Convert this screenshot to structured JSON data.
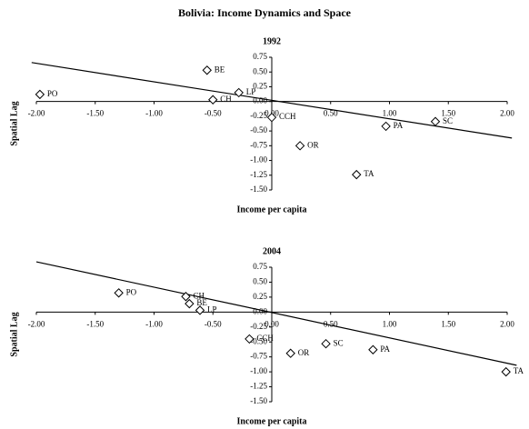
{
  "title": "Bolivia: Income Dynamics and Space",
  "chart_data": [
    {
      "type": "scatter",
      "title": "1992",
      "x_label": "Income per capita",
      "y_label": "Spatial Lag",
      "x": [
        -1.97,
        -0.55,
        -0.5,
        -0.28,
        0.0,
        0.24,
        0.72,
        0.97,
        1.39
      ],
      "values": [
        0.12,
        0.53,
        0.03,
        0.15,
        -0.27,
        -0.75,
        -1.24,
        -0.42,
        -0.34
      ],
      "point_labels": [
        "PO",
        "BE",
        "CH",
        "LP",
        "CCH",
        "OR",
        "TA",
        "PA",
        "SC"
      ],
      "fit_line": {
        "x": [
          -2.04,
          2.04
        ],
        "y": [
          0.66,
          -0.62
        ]
      },
      "color": "#000000",
      "xlim": [
        -2,
        2
      ],
      "ylim": [
        -1.5,
        0.75
      ],
      "xticks": [
        {
          "value": -2,
          "label": "-2.00"
        },
        {
          "value": -1.5,
          "label": "-1.50"
        },
        {
          "value": -1,
          "label": "-1.00"
        },
        {
          "value": -0.5,
          "label": "-0.50"
        },
        {
          "value": 0,
          "label": "0.00"
        },
        {
          "value": 0.5,
          "label": "0.50"
        },
        {
          "value": 1,
          "label": "1.00"
        },
        {
          "value": 1.5,
          "label": "1.50"
        },
        {
          "value": 2,
          "label": "2.00"
        }
      ],
      "yticks": [
        {
          "value": 0.75,
          "label": "0.75"
        },
        {
          "value": 0.5,
          "label": "0.50"
        },
        {
          "value": 0.25,
          "label": "0.25"
        },
        {
          "value": 0,
          "label": "0.00"
        },
        {
          "value": -0.25,
          "label": "-0.25"
        },
        {
          "value": -0.5,
          "label": "-0.50"
        },
        {
          "value": -0.75,
          "label": "-0.75"
        },
        {
          "value": -1,
          "label": "-1.00"
        },
        {
          "value": -1.25,
          "label": "-1.25"
        },
        {
          "value": -1.5,
          "label": "-1.50"
        }
      ]
    },
    {
      "type": "scatter",
      "title": "2004",
      "x_label": "Income per capita",
      "y_label": "Spatial Lag",
      "x": [
        -1.3,
        -0.73,
        -0.7,
        -0.61,
        -0.19,
        0.16,
        0.46,
        0.86,
        1.99
      ],
      "values": [
        0.32,
        0.26,
        0.14,
        0.03,
        -0.45,
        -0.69,
        -0.53,
        -0.63,
        -1.0
      ],
      "point_labels": [
        "PO",
        "CH",
        "BE",
        "LP",
        "CCH",
        "OR",
        "SC",
        "PA",
        "TA"
      ],
      "fit_line": {
        "x": [
          -2.0,
          2.08
        ],
        "y": [
          0.84,
          -0.89
        ]
      },
      "color": "#000000",
      "xlim": [
        -2,
        2
      ],
      "ylim": [
        -1.5,
        0.75
      ],
      "xticks": [
        {
          "value": -2,
          "label": "-2.00"
        },
        {
          "value": -1.5,
          "label": "-1.50"
        },
        {
          "value": -1,
          "label": "-1.00"
        },
        {
          "value": -0.5,
          "label": "-0.50"
        },
        {
          "value": 0,
          "label": "0.00"
        },
        {
          "value": 0.5,
          "label": "0.50"
        },
        {
          "value": 1,
          "label": "1.00"
        },
        {
          "value": 1.5,
          "label": "1.50"
        },
        {
          "value": 2,
          "label": "2.00"
        }
      ],
      "yticks": [
        {
          "value": 0.75,
          "label": "0.75"
        },
        {
          "value": 0.5,
          "label": "0.50"
        },
        {
          "value": 0.25,
          "label": "0.25"
        },
        {
          "value": 0,
          "label": "0.00"
        },
        {
          "value": -0.25,
          "label": "-0.25"
        },
        {
          "value": -0.5,
          "label": "-0.50"
        },
        {
          "value": -0.75,
          "label": "-0.75"
        },
        {
          "value": -1,
          "label": "-1.00"
        },
        {
          "value": -1.25,
          "label": "-1.25"
        },
        {
          "value": -1.5,
          "label": "-1.50"
        }
      ]
    }
  ]
}
